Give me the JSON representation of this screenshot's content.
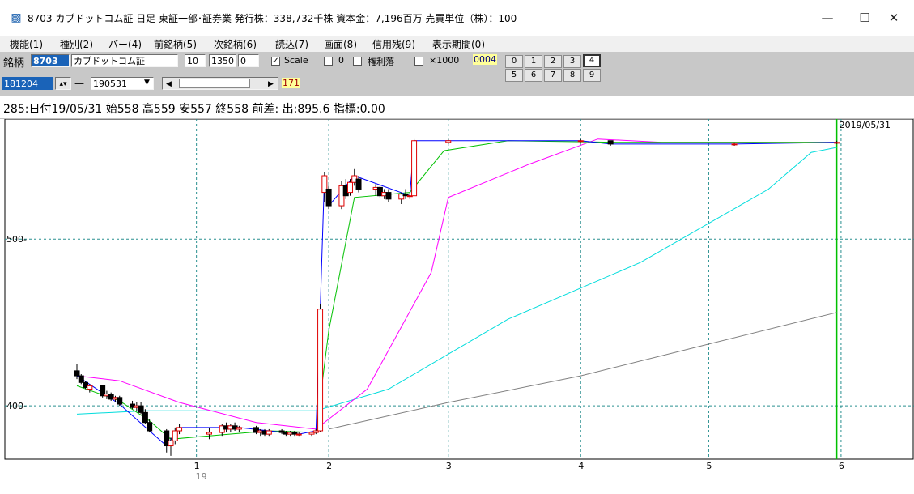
{
  "window": {
    "title": "8703 カブドットコム証 日足 東証一部･証券業 発行株：338,732千株 資本金：7,196百万 売買単位（株）：100",
    "minimize": "—",
    "maximize": "☐",
    "close": "✕"
  },
  "menu": [
    "機能(1)",
    "種別(2)",
    "バー(4)",
    "前銘柄(5)",
    "次銘柄(6)",
    "読込(7)",
    "画面(8)",
    "信用残(9)",
    "表示期間(0)"
  ],
  "toolbar": {
    "meigara_label": "銘柄",
    "code": "8703",
    "name": "カブドットコム証",
    "field1": "10",
    "field2": "1350",
    "field3": "0",
    "scale_label": "Scale",
    "scale_checked": true,
    "zero_label": "0",
    "kenri_label": "権利落",
    "x1000_label": "×1000",
    "id_badge": "0004",
    "start_date": "181204",
    "end_date": "190531",
    "counter": "171",
    "dash": "—",
    "number_buttons": [
      "0",
      "1",
      "2",
      "3",
      "4",
      "5",
      "6",
      "7",
      "8",
      "9"
    ],
    "active_button": "4"
  },
  "info": "285:日付19/05/31 始558 高559 安557 終558 前差: 出:895.6 指標:0.00",
  "chart_data": {
    "type": "candlestick",
    "ylim": [
      368,
      572
    ],
    "x_range": [
      "2018-12-04",
      "2019-06-05"
    ],
    "y_ticks": [
      400,
      500
    ],
    "x_ticks": [
      {
        "date": "2019-01-01",
        "label": "1",
        "sub": "19"
      },
      {
        "date": "2019-02-01",
        "label": "2",
        "sub": ""
      },
      {
        "date": "2019-03-01",
        "label": "3",
        "sub": ""
      },
      {
        "date": "2019-04-01",
        "label": "4",
        "sub": ""
      },
      {
        "date": "2019-05-01",
        "label": "5",
        "sub": ""
      },
      {
        "date": "2019-06-01",
        "label": "6",
        "sub": ""
      }
    ],
    "last_date_label": "2019/05/31",
    "last_date": "2019-05-31",
    "colors": {
      "up": "#e00000",
      "down": "#000000",
      "close_line": "#0000ff",
      "ma_short": "#00c000",
      "ma_mid": "#ff00ff",
      "ma_long": "#00dcdc",
      "ma_xlong": "#808080",
      "grid": "#2a9090",
      "today_line": "#00c000"
    },
    "candles": [
      {
        "date": "2018-12-04",
        "o": 421,
        "h": 425,
        "l": 416,
        "c": 418
      },
      {
        "date": "2018-12-05",
        "o": 418,
        "h": 419,
        "l": 413,
        "c": 414
      },
      {
        "date": "2018-12-06",
        "o": 414,
        "h": 415,
        "l": 410,
        "c": 411
      },
      {
        "date": "2018-12-07",
        "o": 410,
        "h": 413,
        "l": 408,
        "c": 412
      },
      {
        "date": "2018-12-10",
        "o": 412,
        "h": 412,
        "l": 405,
        "c": 406
      },
      {
        "date": "2018-12-11",
        "o": 406,
        "h": 409,
        "l": 404,
        "c": 407
      },
      {
        "date": "2018-12-12",
        "o": 407,
        "h": 408,
        "l": 403,
        "c": 404
      },
      {
        "date": "2018-12-13",
        "o": 404,
        "h": 406,
        "l": 402,
        "c": 405
      },
      {
        "date": "2018-12-14",
        "o": 405,
        "h": 406,
        "l": 400,
        "c": 401
      },
      {
        "date": "2018-12-17",
        "o": 401,
        "h": 403,
        "l": 398,
        "c": 399
      },
      {
        "date": "2018-12-18",
        "o": 399,
        "h": 402,
        "l": 397,
        "c": 400
      },
      {
        "date": "2018-12-19",
        "o": 400,
        "h": 402,
        "l": 395,
        "c": 396
      },
      {
        "date": "2018-12-20",
        "o": 396,
        "h": 398,
        "l": 389,
        "c": 390
      },
      {
        "date": "2018-12-21",
        "o": 390,
        "h": 392,
        "l": 384,
        "c": 385
      },
      {
        "date": "2018-12-25",
        "o": 385,
        "h": 386,
        "l": 372,
        "c": 376
      },
      {
        "date": "2018-12-26",
        "o": 376,
        "h": 381,
        "l": 370,
        "c": 379
      },
      {
        "date": "2018-12-27",
        "o": 379,
        "h": 387,
        "l": 377,
        "c": 385
      },
      {
        "date": "2018-12-28",
        "o": 385,
        "h": 389,
        "l": 383,
        "c": 387
      },
      {
        "date": "2019-01-04",
        "o": 383,
        "h": 387,
        "l": 380,
        "c": 384
      },
      {
        "date": "2019-01-07",
        "o": 384,
        "h": 389,
        "l": 382,
        "c": 388
      },
      {
        "date": "2019-01-08",
        "o": 388,
        "h": 390,
        "l": 384,
        "c": 386
      },
      {
        "date": "2019-01-09",
        "o": 386,
        "h": 389,
        "l": 384,
        "c": 388
      },
      {
        "date": "2019-01-10",
        "o": 388,
        "h": 390,
        "l": 385,
        "c": 386
      },
      {
        "date": "2019-01-11",
        "o": 386,
        "h": 388,
        "l": 384,
        "c": 387
      },
      {
        "date": "2019-01-15",
        "o": 387,
        "h": 388,
        "l": 383,
        "c": 384
      },
      {
        "date": "2019-01-16",
        "o": 384,
        "h": 386,
        "l": 382,
        "c": 385
      },
      {
        "date": "2019-01-17",
        "o": 385,
        "h": 386,
        "l": 382,
        "c": 383
      },
      {
        "date": "2019-01-18",
        "o": 383,
        "h": 386,
        "l": 382,
        "c": 385
      },
      {
        "date": "2019-01-21",
        "o": 385,
        "h": 386,
        "l": 383,
        "c": 384
      },
      {
        "date": "2019-01-22",
        "o": 384,
        "h": 385,
        "l": 382,
        "c": 383
      },
      {
        "date": "2019-01-23",
        "o": 383,
        "h": 385,
        "l": 382,
        "c": 384
      },
      {
        "date": "2019-01-24",
        "o": 384,
        "h": 385,
        "l": 382,
        "c": 383
      },
      {
        "date": "2019-01-25",
        "o": 383,
        "h": 384,
        "l": 382,
        "c": 383
      },
      {
        "date": "2019-01-28",
        "o": 383,
        "h": 384,
        "l": 382,
        "c": 384
      },
      {
        "date": "2019-01-29",
        "o": 384,
        "h": 386,
        "l": 383,
        "c": 385
      },
      {
        "date": "2019-01-30",
        "o": 385,
        "h": 461,
        "l": 384,
        "c": 458
      },
      {
        "date": "2019-01-31",
        "o": 528,
        "h": 540,
        "l": 522,
        "c": 538
      },
      {
        "date": "2019-02-01",
        "o": 530,
        "h": 532,
        "l": 518,
        "c": 520
      },
      {
        "date": "2019-02-04",
        "o": 520,
        "h": 535,
        "l": 518,
        "c": 532
      },
      {
        "date": "2019-02-05",
        "o": 532,
        "h": 536,
        "l": 524,
        "c": 526
      },
      {
        "date": "2019-02-06",
        "o": 528,
        "h": 536,
        "l": 526,
        "c": 534
      },
      {
        "date": "2019-02-07",
        "o": 534,
        "h": 542,
        "l": 532,
        "c": 538
      },
      {
        "date": "2019-02-08",
        "o": 536,
        "h": 538,
        "l": 528,
        "c": 530
      },
      {
        "date": "2019-02-12",
        "o": 530,
        "h": 533,
        "l": 526,
        "c": 531
      },
      {
        "date": "2019-02-13",
        "o": 531,
        "h": 532,
        "l": 525,
        "c": 526
      },
      {
        "date": "2019-02-14",
        "o": 526,
        "h": 530,
        "l": 524,
        "c": 528
      },
      {
        "date": "2019-02-15",
        "o": 528,
        "h": 530,
        "l": 522,
        "c": 524
      },
      {
        "date": "2019-02-18",
        "o": 524,
        "h": 528,
        "l": 521,
        "c": 527
      },
      {
        "date": "2019-02-19",
        "o": 527,
        "h": 530,
        "l": 524,
        "c": 526
      },
      {
        "date": "2019-02-20",
        "o": 526,
        "h": 528,
        "l": 524,
        "c": 526
      },
      {
        "date": "2019-02-21",
        "o": 526,
        "h": 560,
        "l": 526,
        "c": 559
      },
      {
        "date": "2019-03-01",
        "o": 558,
        "h": 560,
        "l": 557,
        "c": 559
      },
      {
        "date": "2019-04-01",
        "o": 559,
        "h": 560,
        "l": 558,
        "c": 559
      },
      {
        "date": "2019-04-08",
        "o": 559,
        "h": 559,
        "l": 556,
        "c": 557
      },
      {
        "date": "2019-05-07",
        "o": 557,
        "h": 558,
        "l": 556,
        "c": 557
      },
      {
        "date": "2019-05-31",
        "o": 558,
        "h": 559,
        "l": 557,
        "c": 558
      }
    ],
    "close_line": [
      [
        "2018-12-04",
        418
      ],
      [
        "2018-12-14",
        401
      ],
      [
        "2018-12-21",
        385
      ],
      [
        "2018-12-25",
        376
      ],
      [
        "2018-12-28",
        387
      ],
      [
        "2019-01-11",
        387
      ],
      [
        "2019-01-25",
        383
      ],
      [
        "2019-01-29",
        385
      ],
      [
        "2019-01-30",
        458
      ],
      [
        "2019-01-31",
        538
      ],
      [
        "2019-02-01",
        520
      ],
      [
        "2019-02-07",
        538
      ],
      [
        "2019-02-20",
        526
      ],
      [
        "2019-02-21",
        559
      ],
      [
        "2019-03-01",
        559
      ],
      [
        "2019-04-01",
        559
      ],
      [
        "2019-04-08",
        557
      ],
      [
        "2019-05-07",
        557
      ],
      [
        "2019-05-31",
        558
      ]
    ],
    "ma_short": [
      [
        "2018-12-04",
        412
      ],
      [
        "2018-12-14",
        403
      ],
      [
        "2018-12-21",
        391
      ],
      [
        "2018-12-26",
        380
      ],
      [
        "2019-01-04",
        382
      ],
      [
        "2019-01-18",
        385
      ],
      [
        "2019-01-29",
        384
      ],
      [
        "2019-02-01",
        445
      ],
      [
        "2019-02-07",
        525
      ],
      [
        "2019-02-20",
        528
      ],
      [
        "2019-02-28",
        553
      ],
      [
        "2019-03-15",
        559
      ],
      [
        "2019-04-10",
        558
      ],
      [
        "2019-05-31",
        558
      ]
    ],
    "ma_mid": [
      [
        "2018-12-04",
        418
      ],
      [
        "2018-12-14",
        415
      ],
      [
        "2018-12-28",
        402
      ],
      [
        "2019-01-15",
        390
      ],
      [
        "2019-01-29",
        386
      ],
      [
        "2019-02-10",
        410
      ],
      [
        "2019-02-25",
        480
      ],
      [
        "2019-03-01",
        525
      ],
      [
        "2019-03-20",
        545
      ],
      [
        "2019-04-05",
        560
      ],
      [
        "2019-04-20",
        558
      ],
      [
        "2019-05-31",
        558
      ]
    ],
    "ma_long": [
      [
        "2018-12-04",
        395
      ],
      [
        "2018-12-20",
        397
      ],
      [
        "2019-01-29",
        397
      ],
      [
        "2019-02-15",
        410
      ],
      [
        "2019-03-15",
        452
      ],
      [
        "2019-04-15",
        486
      ],
      [
        "2019-05-15",
        530
      ],
      [
        "2019-05-25",
        552
      ],
      [
        "2019-05-31",
        555
      ]
    ],
    "ma_xlong": [
      [
        "2019-02-01",
        386
      ],
      [
        "2019-03-01",
        402
      ],
      [
        "2019-04-01",
        418
      ],
      [
        "2019-05-01",
        437
      ],
      [
        "2019-05-31",
        456
      ]
    ]
  }
}
